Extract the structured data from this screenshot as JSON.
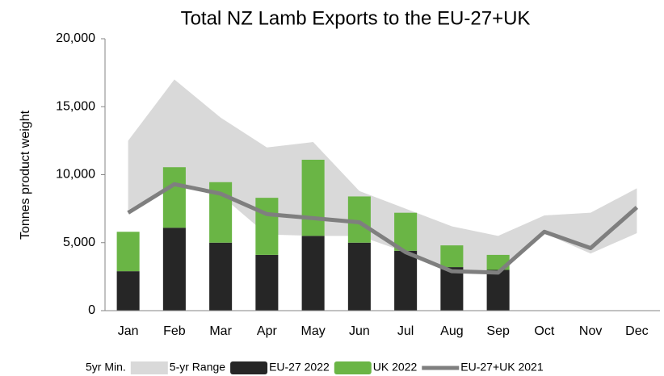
{
  "chart_data": {
    "type": "bar",
    "title": "Total NZ Lamb Exports to the EU-27+UK",
    "y_label": "Tonnes product weight",
    "categories": [
      "Jan",
      "Feb",
      "Mar",
      "Apr",
      "May",
      "Jun",
      "Jul",
      "Aug",
      "Sep",
      "Oct",
      "Nov",
      "Dec"
    ],
    "ylim": [
      0,
      20000
    ],
    "yticks": [
      0,
      {
        "value": 5000,
        "label": "5,000"
      },
      {
        "value": 10000,
        "label": "10,000"
      },
      {
        "value": 15000,
        "label": "15,000"
      },
      {
        "value": 20000,
        "label": "20,000"
      }
    ],
    "legend": "bottom",
    "series": [
      {
        "name": "5yr Min.",
        "type": "area",
        "stack": "range",
        "color": "#ffffff",
        "values": [
          7400,
          9400,
          8500,
          5600,
          5500,
          5500,
          4300,
          2800,
          2700,
          5700,
          4200,
          5700
        ]
      },
      {
        "name": "5-yr Range",
        "type": "area",
        "stack": "range",
        "color": "#d9d9d9",
        "values": [
          5100,
          7600,
          5700,
          6400,
          6900,
          3300,
          3200,
          3400,
          2800,
          1300,
          3000,
          3300
        ]
      },
      {
        "name": "EU-27 2022",
        "type": "bar",
        "stack": "2022",
        "color": "#262626",
        "values": [
          2900,
          6100,
          5000,
          4100,
          5500,
          5000,
          4400,
          3200,
          3000,
          null,
          null,
          null
        ]
      },
      {
        "name": "UK 2022",
        "type": "bar",
        "stack": "2022",
        "color": "#6ab545",
        "values": [
          2900,
          4450,
          4450,
          4200,
          5600,
          3400,
          2800,
          1600,
          1100,
          null,
          null,
          null
        ]
      },
      {
        "name": "EU-27+UK 2021",
        "type": "line",
        "color": "#7f7f7f",
        "values": [
          7200,
          9300,
          8600,
          7100,
          6800,
          6500,
          4300,
          2900,
          2800,
          5800,
          4600,
          7600
        ]
      }
    ]
  }
}
